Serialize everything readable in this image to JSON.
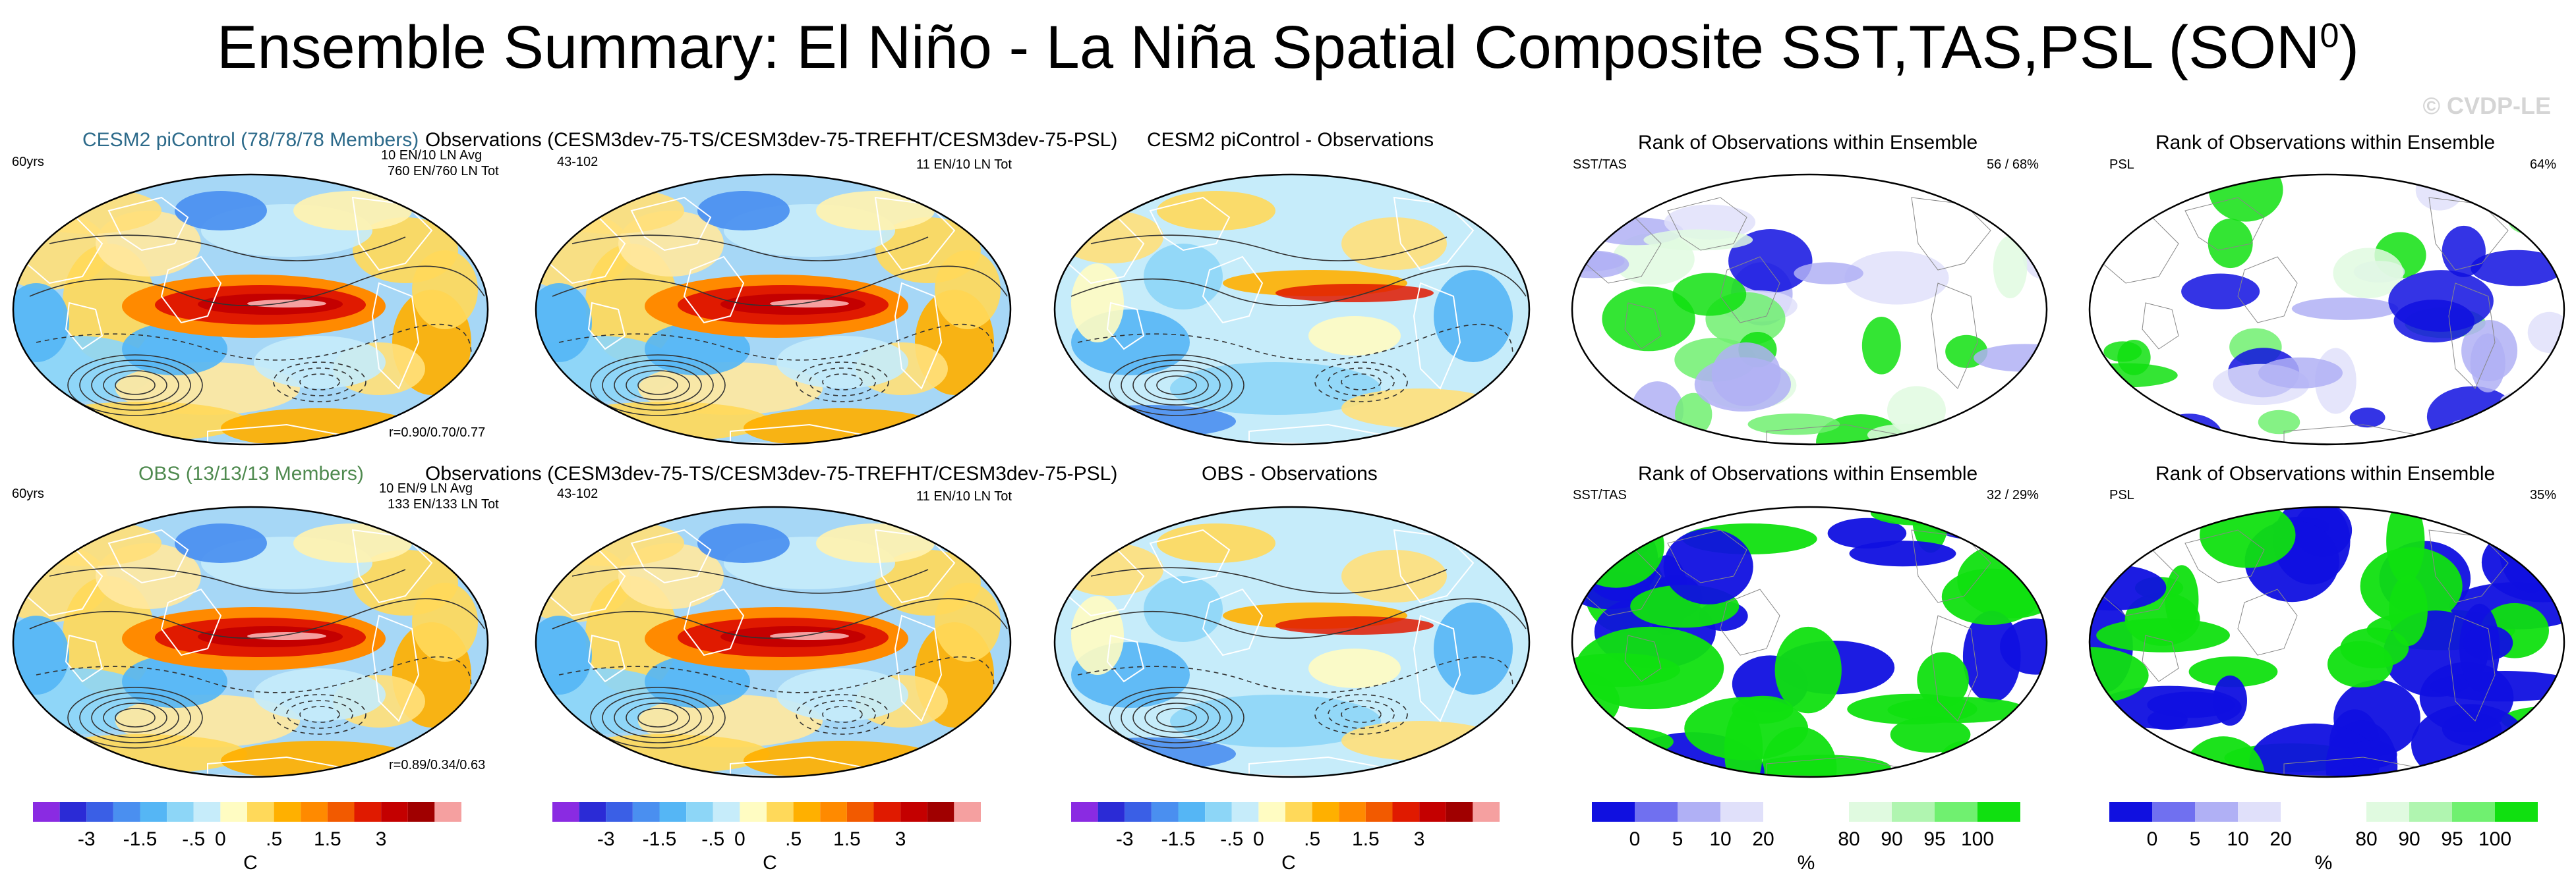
{
  "header": {
    "title_main": "Ensemble Summary: El Niño - La Niña Spatial Composite SST,TAS,PSL (SON",
    "title_sup": "0",
    "title_close": ")",
    "watermark": "© CVDP-LE"
  },
  "rows": [
    {
      "panels": [
        {
          "title": "CESM2 piControl (78/78/78 Members)",
          "title_color": "#2c6a8a",
          "left": "60yrs",
          "right": [
            "10 EN/10 LN Avg",
            "760 EN/760 LN Tot"
          ],
          "bottom": "r=0.90/0.70/0.77",
          "type": "composite"
        },
        {
          "title": "Observations (CESM3dev-75-TS/CESM3dev-75-TREFHT/CESM3dev-75-PSL)",
          "title_color": "#000000",
          "left": "43-102",
          "right": [
            "11 EN/10 LN Tot"
          ],
          "bottom": "",
          "type": "composite"
        },
        {
          "title": "CESM2 piControl - Observations",
          "title_color": "#000000",
          "left": "",
          "right": [],
          "bottom": "",
          "type": "difference"
        },
        {
          "title": "Rank of Observations within Ensemble",
          "title_color": "#000000",
          "left": "SST/TAS",
          "right": [
            "56 /  68%"
          ],
          "bottom": "",
          "type": "rank"
        },
        {
          "title": "Rank of Observations within Ensemble",
          "title_color": "#000000",
          "left": "PSL",
          "right": [
            "64%"
          ],
          "bottom": "",
          "type": "rank"
        }
      ]
    },
    {
      "panels": [
        {
          "title": "OBS (13/13/13 Members)",
          "title_color": "#4f8a4f",
          "left": "60yrs",
          "right": [
            "10 EN/9 LN Avg",
            "133 EN/133 LN Tot"
          ],
          "bottom": "r=0.89/0.34/0.63",
          "type": "composite"
        },
        {
          "title": "Observations (CESM3dev-75-TS/CESM3dev-75-TREFHT/CESM3dev-75-PSL)",
          "title_color": "#000000",
          "left": "43-102",
          "right": [
            "11 EN/10 LN Tot"
          ],
          "bottom": "",
          "type": "composite"
        },
        {
          "title": "OBS - Observations",
          "title_color": "#000000",
          "left": "",
          "right": [],
          "bottom": "",
          "type": "difference"
        },
        {
          "title": "Rank of Observations within Ensemble",
          "title_color": "#000000",
          "left": "SST/TAS",
          "right": [
            "32 /  29%"
          ],
          "bottom": "",
          "type": "rank"
        },
        {
          "title": "Rank of Observations within Ensemble",
          "title_color": "#000000",
          "left": "PSL",
          "right": [
            "35%"
          ],
          "bottom": "",
          "type": "rank"
        }
      ]
    }
  ],
  "colorbars": {
    "temperature": {
      "colors": [
        "#8a2be2",
        "#2b2bd6",
        "#3a5fe6",
        "#4a8ff0",
        "#55b6f5",
        "#8dd6f7",
        "#c6ecfa",
        "#fffcc2",
        "#ffd95a",
        "#ffb000",
        "#ff8a00",
        "#f25a00",
        "#e01a00",
        "#c40000",
        "#a00000",
        "#f5a0a0"
      ],
      "labels": [
        "-3",
        "-1.5",
        "-.5",
        "0",
        ".5",
        "1.5",
        "3"
      ],
      "label_after_box": [
        2,
        4,
        6,
        7,
        9,
        11,
        13
      ],
      "unit": "C"
    },
    "rank": {
      "colors": [
        "#1010e0",
        "#7070f0",
        "#b0b0f5",
        "#e0e0fa",
        "#ffffff",
        "#ffffff",
        "#e0fae0",
        "#b0f5b0",
        "#70f070",
        "#10e010"
      ],
      "labels": [
        "0",
        "5",
        "10",
        "20",
        "80",
        "90",
        "95",
        "100"
      ],
      "label_after_box": [
        1,
        2,
        3,
        4,
        6,
        7,
        8,
        9
      ],
      "unit": "%"
    }
  },
  "chart_data": [
    {
      "type": "heatmap",
      "title": "CESM2 piControl (78/78/78 Members)",
      "field": "El Niño - La Niña composite SST/TAS (shaded, C) with PSL contours",
      "colorbar_ticks": [
        -3,
        -1.5,
        -0.5,
        0,
        0.5,
        1.5,
        3
      ],
      "unit": "C",
      "pattern_correlation": [
        0.9,
        0.7,
        0.77
      ]
    },
    {
      "type": "heatmap",
      "title": "Observations (CESM3dev-75-TS/CESM3dev-75-TREFHT/CESM3dev-75-PSL)",
      "years": "43-102",
      "unit": "C"
    },
    {
      "type": "heatmap",
      "title": "CESM2 piControl - Observations",
      "unit": "C"
    },
    {
      "type": "heatmap",
      "title": "Rank of Observations within Ensemble (SST/TAS)",
      "unit": "%",
      "colorbar_ticks": [
        0,
        5,
        10,
        20,
        80,
        90,
        95,
        100
      ],
      "summary": [
        56,
        68
      ]
    },
    {
      "type": "heatmap",
      "title": "Rank of Observations within Ensemble (PSL)",
      "unit": "%",
      "summary": [
        64
      ]
    },
    {
      "type": "heatmap",
      "title": "OBS (13/13/13 Members)",
      "unit": "C",
      "pattern_correlation": [
        0.89,
        0.34,
        0.63
      ]
    },
    {
      "type": "heatmap",
      "title": "Observations (CESM3dev-75-TS/CESM3dev-75-TREFHT/CESM3dev-75-PSL)",
      "years": "43-102",
      "unit": "C"
    },
    {
      "type": "heatmap",
      "title": "OBS - Observations",
      "unit": "C"
    },
    {
      "type": "heatmap",
      "title": "Rank of Observations within Ensemble (SST/TAS)",
      "unit": "%",
      "summary": [
        32,
        29
      ]
    },
    {
      "type": "heatmap",
      "title": "Rank of Observations within Ensemble (PSL)",
      "unit": "%",
      "summary": [
        35
      ]
    }
  ]
}
